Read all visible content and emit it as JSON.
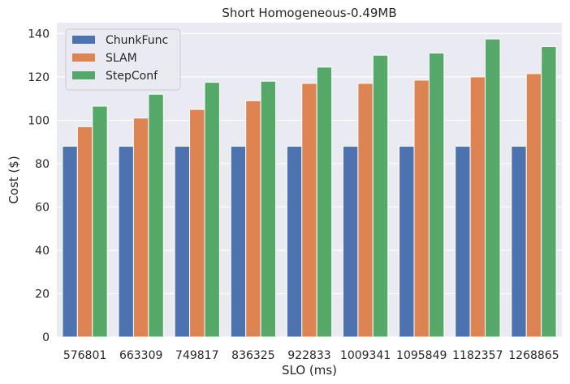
{
  "chart_data": {
    "type": "bar",
    "title": "Short Homogeneous-0.49MB",
    "xlabel": "SLO (ms)",
    "ylabel": "Cost ($)",
    "ylim": [
      0,
      145
    ],
    "yticks": [
      0,
      20,
      40,
      60,
      80,
      100,
      120,
      140
    ],
    "grid": true,
    "legend_position": "top-left",
    "categories": [
      "576801",
      "663309",
      "749817",
      "836325",
      "922833",
      "1009341",
      "1095849",
      "1182357",
      "1268865"
    ],
    "series": [
      {
        "name": "ChunkFunc",
        "color": "#4c72b0",
        "values": [
          88,
          88,
          88,
          88,
          88,
          88,
          88,
          88,
          88
        ]
      },
      {
        "name": "SLAM",
        "color": "#dd8452",
        "values": [
          97,
          101,
          105,
          109,
          117,
          117,
          118.5,
          120,
          121.5
        ]
      },
      {
        "name": "StepConf",
        "color": "#55a868",
        "values": [
          106.5,
          112,
          117.5,
          118,
          124.5,
          130,
          131,
          137.5,
          134
        ]
      }
    ]
  }
}
